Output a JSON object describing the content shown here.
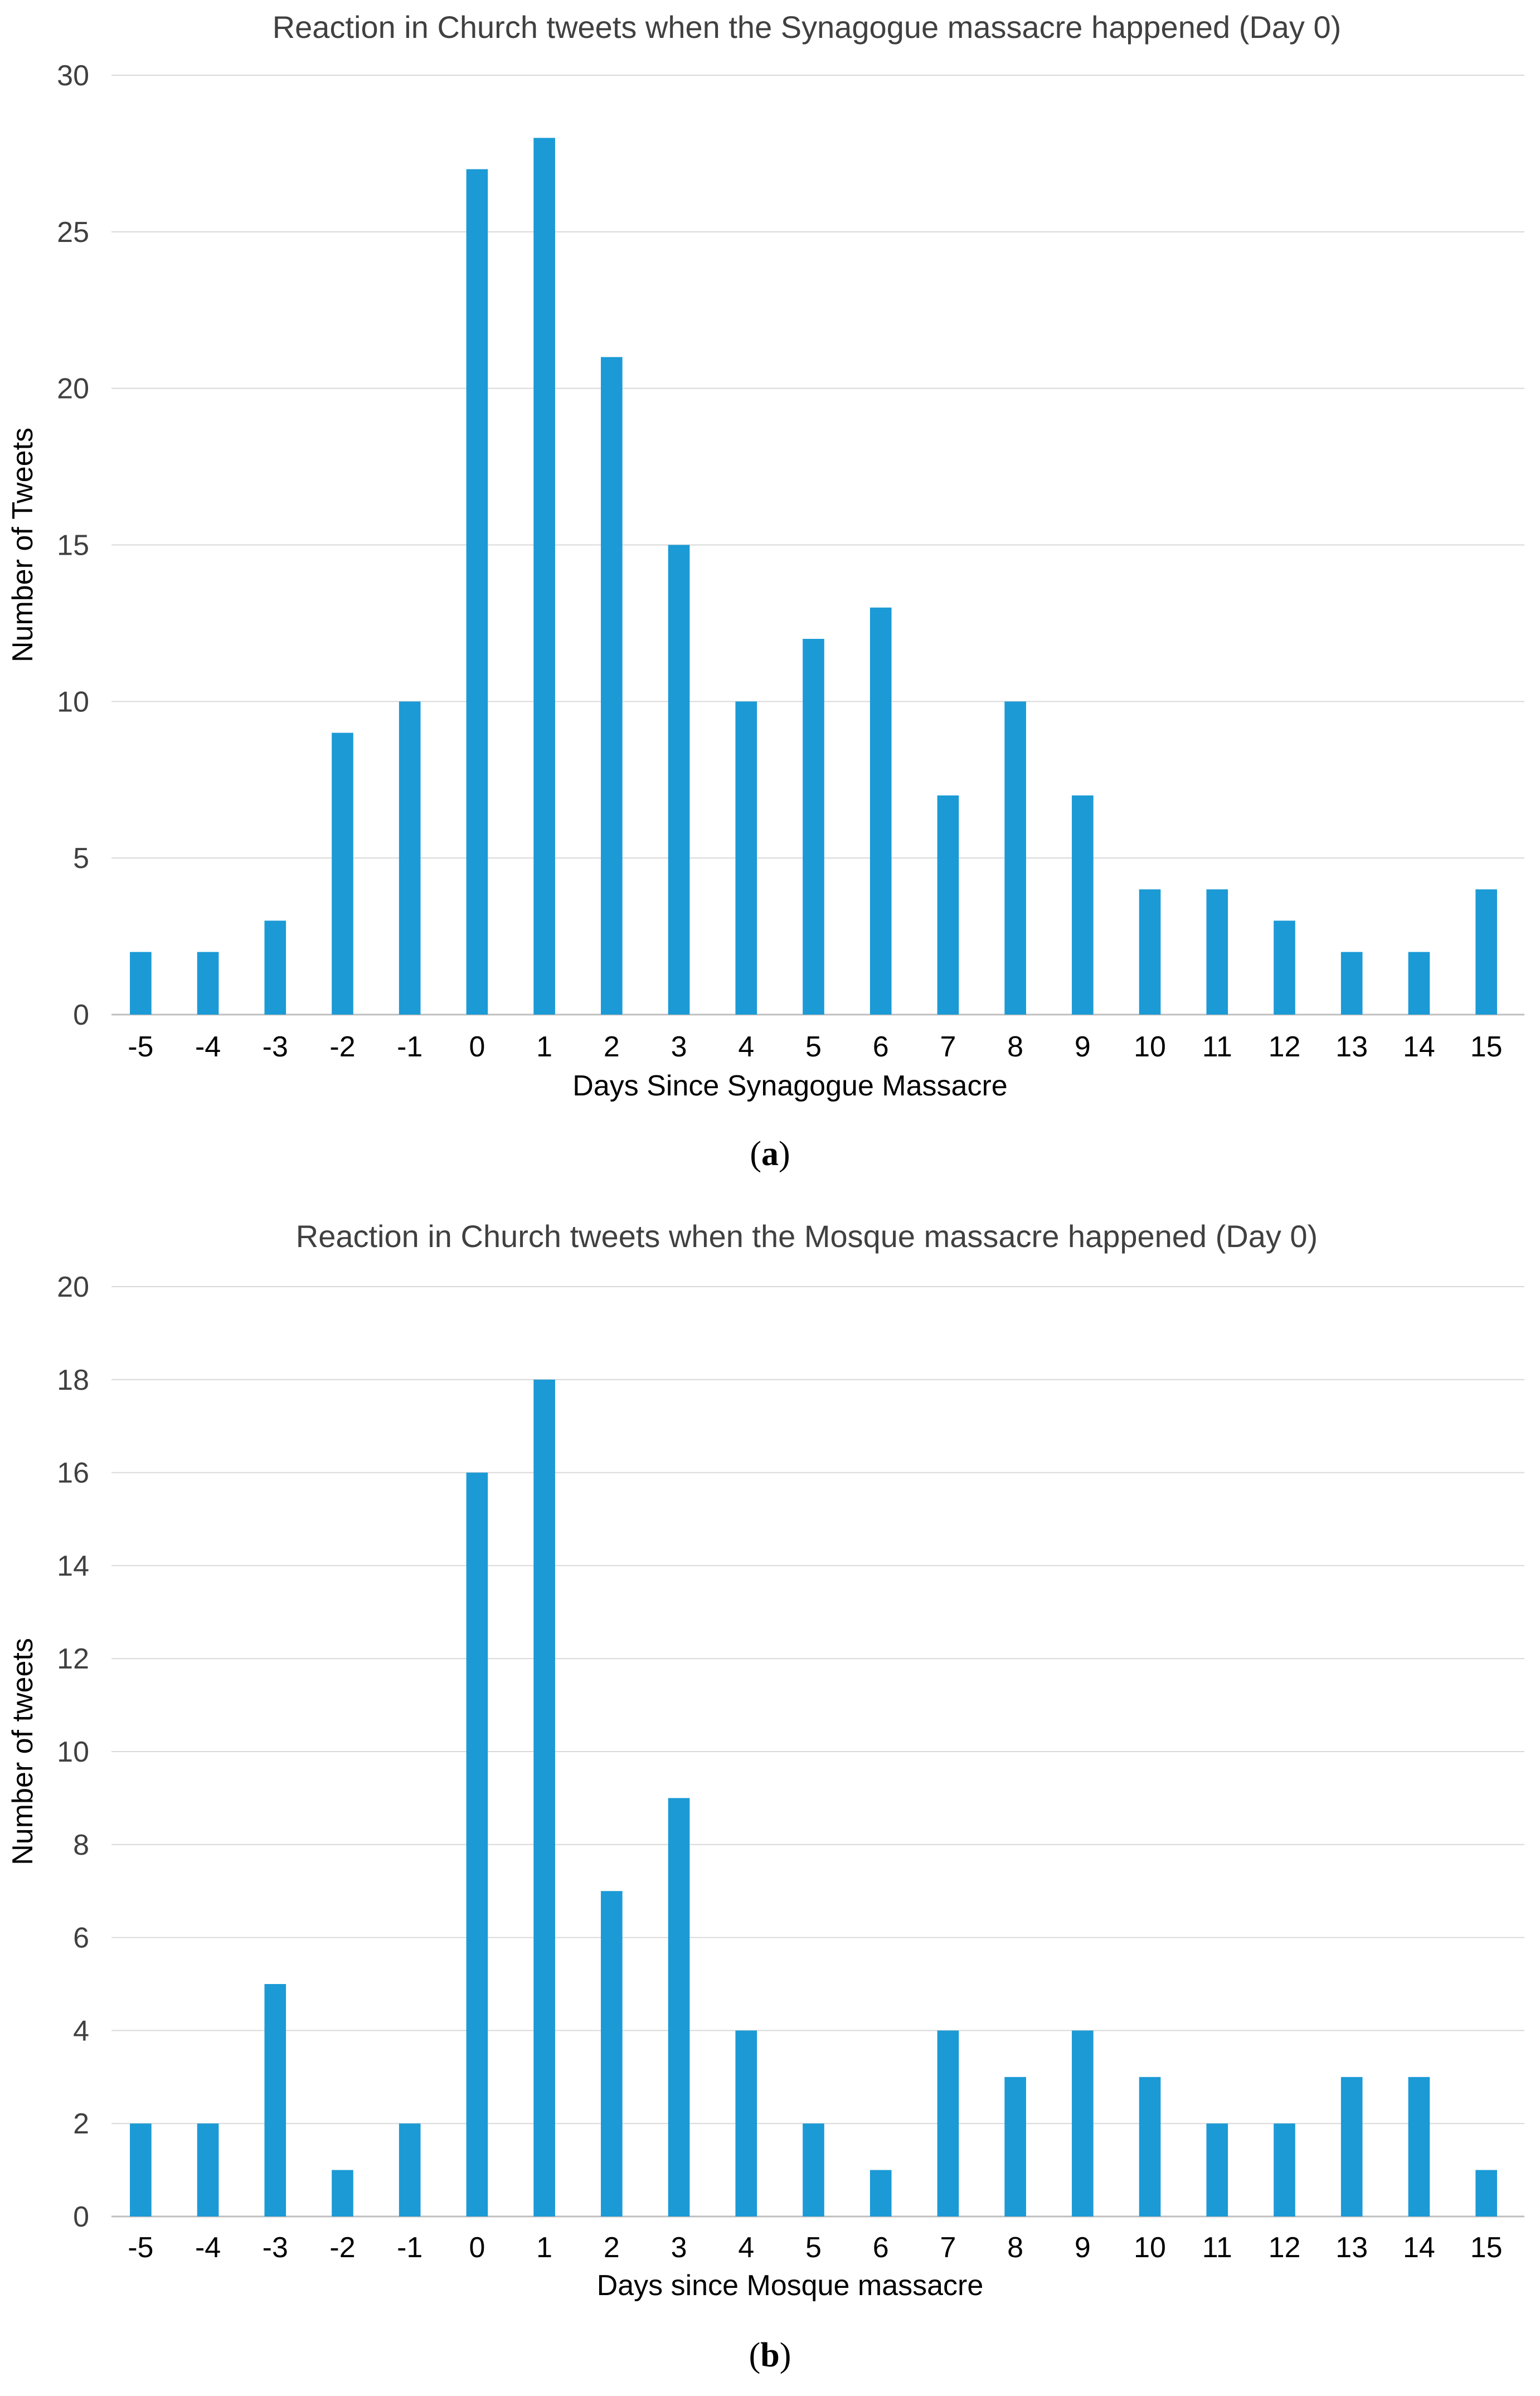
{
  "colors": {
    "bar": "#1b9ad6",
    "grid": "#d9d9d9",
    "text": "#404040"
  },
  "chart_data": [
    {
      "type": "bar",
      "title": "Reaction in Church tweets when the Synagogue massacre happened (Day 0)",
      "xlabel": "Days Since Synagogue Massacre",
      "ylabel": "Number of Tweets",
      "ylim": [
        0,
        30
      ],
      "yticks": [
        0,
        5,
        10,
        15,
        20,
        25,
        30
      ],
      "categories": [
        "-5",
        "-4",
        "-3",
        "-2",
        "-1",
        "0",
        "1",
        "2",
        "3",
        "4",
        "5",
        "6",
        "7",
        "8",
        "9",
        "10",
        "11",
        "12",
        "13",
        "14",
        "15"
      ],
      "values": [
        2,
        2,
        3,
        9,
        10,
        27,
        28,
        21,
        15,
        10,
        12,
        13,
        7,
        10,
        7,
        4,
        4,
        3,
        2,
        2,
        4
      ],
      "grid": true,
      "legend": "none"
    },
    {
      "type": "bar",
      "title": "Reaction in Church tweets when the Mosque massacre happened (Day 0)",
      "xlabel": "Days since Mosque massacre",
      "ylabel": "Number of tweets",
      "ylim": [
        0,
        20
      ],
      "yticks": [
        0,
        2,
        4,
        6,
        8,
        10,
        12,
        14,
        16,
        18,
        20
      ],
      "categories": [
        "-5",
        "-4",
        "-3",
        "-2",
        "-1",
        "0",
        "1",
        "2",
        "3",
        "4",
        "5",
        "6",
        "7",
        "8",
        "9",
        "10",
        "11",
        "12",
        "13",
        "14",
        "15"
      ],
      "values": [
        2,
        2,
        5,
        1,
        2,
        16,
        18,
        7,
        9,
        4,
        2,
        1,
        4,
        3,
        4,
        3,
        2,
        2,
        3,
        3,
        1
      ],
      "grid": true,
      "legend": "none"
    }
  ],
  "captions": [
    {
      "open": "(",
      "letter": "a",
      "close": ")"
    },
    {
      "open": "(",
      "letter": "b",
      "close": ")"
    }
  ]
}
